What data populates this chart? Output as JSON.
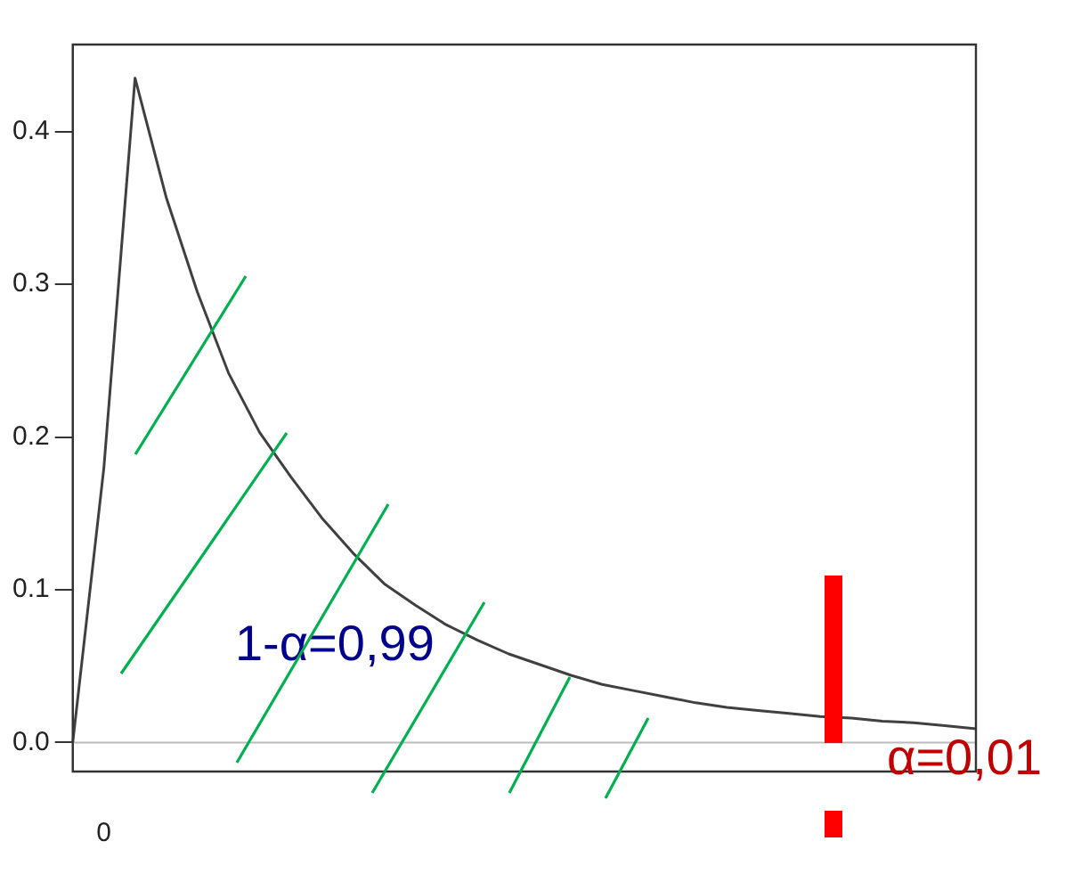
{
  "chart_data": {
    "type": "line",
    "categories": [
      null,
      "0",
      null,
      null,
      null,
      null,
      null,
      null,
      null,
      null,
      null,
      null,
      null,
      null,
      null,
      null,
      null,
      null,
      null,
      null,
      null,
      null,
      null,
      null,
      null,
      null,
      null,
      null,
      null,
      null
    ],
    "series": [
      {
        "color": "#404040",
        "values": [
          0,
          0.18,
          0.435,
          0.357,
          0.295,
          0.242,
          0.203,
          0.174,
          0.147,
          0.124,
          0.104,
          0.09,
          0.077,
          0.067,
          0.058,
          0.051,
          0.044,
          0.038,
          0.034,
          0.03,
          0.026,
          0.023,
          0.021,
          0.019,
          0.017,
          0.016,
          0.014,
          0.013,
          0.011,
          0.009
        ]
      }
    ],
    "ylim": [
      -0.019,
      0.457
    ],
    "yticks": [
      {
        "value": 0,
        "label": "0.0"
      },
      {
        "value": 0.1,
        "label": "0.1"
      },
      {
        "value": 0.2,
        "label": "0.2"
      },
      {
        "value": 0.3,
        "label": "0.3"
      },
      {
        "value": 0.4,
        "label": "0.4"
      }
    ],
    "ref_lines": [
      {
        "axis": "y",
        "value": 0,
        "color": "#bbbbbb"
      }
    ],
    "annotations": [
      "1-α=0,99",
      "α=0,01"
    ],
    "grid": false,
    "legend": false,
    "marker": "none",
    "line_style": "solid"
  }
}
